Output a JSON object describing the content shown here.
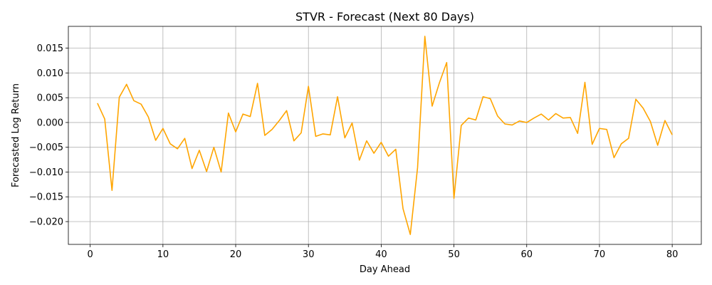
{
  "chart_data": {
    "type": "line",
    "title": "STVR - Forecast (Next 80 Days)",
    "xlabel": "Day Ahead",
    "ylabel": "Forecasted Log Return",
    "xlim": [
      -3,
      84
    ],
    "ylim": [
      -0.0246,
      0.0194
    ],
    "xticks": [
      0,
      10,
      20,
      30,
      40,
      50,
      60,
      70,
      80
    ],
    "xtick_labels": [
      "0",
      "10",
      "20",
      "30",
      "40",
      "50",
      "60",
      "70",
      "80"
    ],
    "yticks": [
      -0.02,
      -0.015,
      -0.01,
      -0.005,
      0.0,
      0.005,
      0.01,
      0.015
    ],
    "ytick_labels": [
      "−0.020",
      "−0.015",
      "−0.010",
      "−0.005",
      "0.000",
      "0.005",
      "0.010",
      "0.015"
    ],
    "grid": true,
    "color": "#FFA500",
    "series": [
      {
        "x": [
          1,
          2,
          3,
          4,
          5,
          6,
          7,
          8,
          9,
          10,
          11,
          12,
          13,
          14,
          15,
          16,
          17,
          18,
          19,
          20,
          21,
          22,
          23,
          24,
          25,
          26,
          27,
          28,
          29,
          30,
          31,
          32,
          33,
          34,
          35,
          36,
          37,
          38,
          39,
          40,
          41,
          42,
          43,
          44,
          45,
          46,
          47,
          48,
          49,
          50,
          51,
          52,
          53,
          54,
          55,
          56,
          57,
          58,
          59,
          60,
          61,
          62,
          63,
          64,
          65,
          66,
          67,
          68,
          69,
          70,
          71,
          72,
          73,
          74,
          75,
          76,
          77,
          78,
          79,
          80
        ],
        "values": [
          0.0039,
          0.0007,
          -0.0137,
          0.0051,
          0.0077,
          0.0044,
          0.0037,
          0.0011,
          -0.0036,
          -0.0012,
          -0.0043,
          -0.0053,
          -0.0032,
          -0.0093,
          -0.0056,
          -0.0099,
          -0.005,
          -0.01,
          0.0019,
          -0.0019,
          0.0017,
          0.0012,
          0.0079,
          -0.0026,
          -0.0014,
          0.0004,
          0.0024,
          -0.0037,
          -0.0021,
          0.0073,
          -0.0028,
          -0.0023,
          -0.0025,
          0.0052,
          -0.0031,
          -0.0001,
          -0.0076,
          -0.0037,
          -0.0062,
          -0.004,
          -0.0068,
          -0.0054,
          -0.0174,
          -0.0226,
          -0.0091,
          0.0174,
          0.0033,
          0.008,
          0.0121,
          -0.0153,
          -0.0006,
          0.0009,
          0.0005,
          0.0052,
          0.0048,
          0.0013,
          -0.0003,
          -0.0005,
          0.0003,
          0.0,
          0.0009,
          0.0017,
          0.0005,
          0.0018,
          0.0009,
          0.001,
          -0.0022,
          0.0081,
          -0.0044,
          -0.0012,
          -0.0014,
          -0.0071,
          -0.0043,
          -0.0032,
          0.0047,
          0.0029,
          0.0002,
          -0.0046,
          0.0004,
          -0.0025
        ]
      }
    ]
  }
}
